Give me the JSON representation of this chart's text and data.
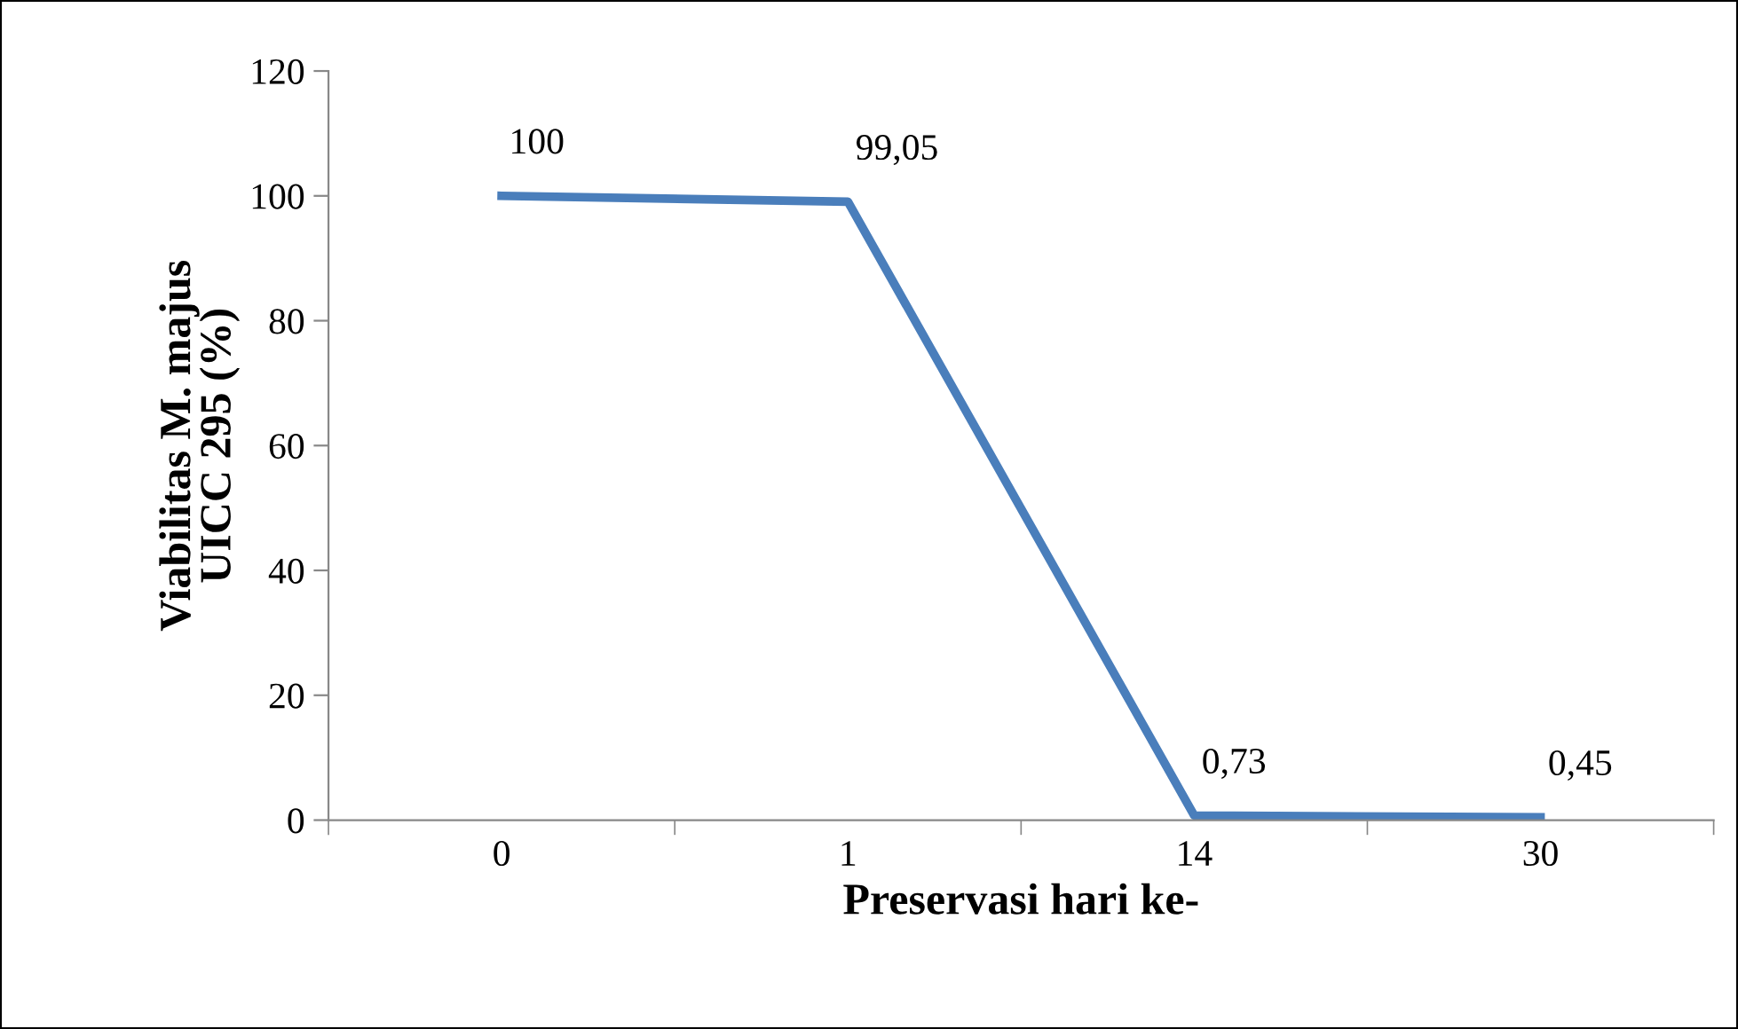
{
  "chart_data": {
    "type": "line",
    "xlabel": "Preservasi hari ke-",
    "ylabel": "Viabilitas M. majus\nUICC 295 (%)",
    "categories": [
      "0",
      "1",
      "14",
      "30"
    ],
    "series": [
      {
        "color": "#4a7ebb",
        "values": [
          100,
          99.05,
          0.73,
          0.45
        ],
        "value_labels": [
          "100",
          "99,05",
          "0,73",
          "0,45"
        ]
      }
    ],
    "ylim": [
      0,
      120
    ],
    "yticks": [
      0,
      20,
      40,
      60,
      80,
      100,
      120
    ],
    "grid": false,
    "legend": false,
    "marker": "none",
    "line_style": "solid"
  }
}
